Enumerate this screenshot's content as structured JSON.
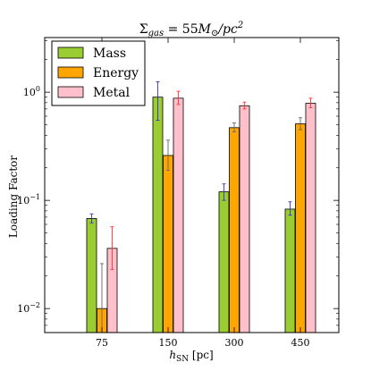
{
  "chart_data": {
    "type": "bar",
    "title": "Σgas = 55M⊙/pc2",
    "title_parts": {
      "sigma": "Σ",
      "sub": "gas",
      "mid": " = 55",
      "msun": "M",
      "sun": "⊙",
      "tail": "/pc",
      "sup": "2"
    },
    "xlabel": "hSN [pc]",
    "xlabel_parts": {
      "h": "h",
      "sub": "SN",
      "rest": " [pc]"
    },
    "ylabel": "Loading Factor",
    "yscale": "log",
    "ylim": [
      0.006,
      3.2
    ],
    "yticks": [
      {
        "value": 0.01,
        "base": "10",
        "exp": "−2"
      },
      {
        "value": 0.1,
        "base": "10",
        "exp": "−1"
      },
      {
        "value": 1,
        "base": "10",
        "exp": "0"
      }
    ],
    "categories": [
      "75",
      "150",
      "300",
      "450"
    ],
    "legend_position": "upper left",
    "series": [
      {
        "name": "Mass",
        "color": "#9acd32",
        "error_color": "#3333cc",
        "values": [
          0.068,
          0.9,
          0.12,
          0.083
        ],
        "err_low": [
          0.062,
          0.55,
          0.1,
          0.073
        ],
        "err_high": [
          0.075,
          1.25,
          0.142,
          0.097
        ]
      },
      {
        "name": "Energy",
        "color": "#ffa500",
        "error_color": "#666666",
        "values": [
          0.01,
          0.26,
          0.47,
          0.51
        ],
        "err_low": [
          0.006,
          0.19,
          0.43,
          0.45
        ],
        "err_high": [
          0.026,
          0.36,
          0.52,
          0.58
        ]
      },
      {
        "name": "Metal",
        "color": "#ffc0cb",
        "error_color": "#ff3333",
        "values": [
          0.036,
          0.88,
          0.75,
          0.79
        ],
        "err_low": [
          0.023,
          0.77,
          0.7,
          0.72
        ],
        "err_high": [
          0.057,
          1.02,
          0.81,
          0.88
        ]
      }
    ]
  }
}
